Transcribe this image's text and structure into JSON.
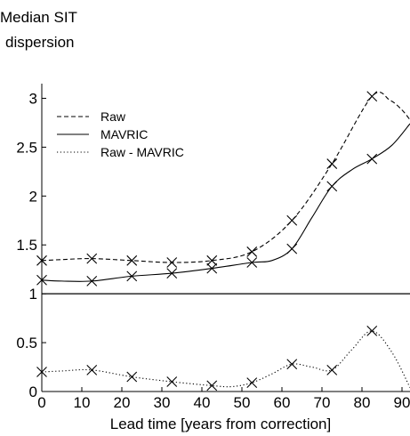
{
  "chart_data": {
    "type": "line",
    "title": "",
    "ylabel_lines": [
      "Median SIT",
      "dispersion"
    ],
    "xlabel": "Lead time [years from correction]",
    "xlim": [
      0,
      92
    ],
    "ylim": [
      0,
      3.15
    ],
    "x_ticks": [
      0,
      10,
      20,
      30,
      40,
      50,
      60,
      70,
      80,
      90
    ],
    "y_ticks": [
      0,
      0.5,
      1,
      1.5,
      2,
      2.5,
      3
    ],
    "y_tick_labels": [
      "0",
      "0.5",
      "1",
      "1.5",
      "2",
      "2.5",
      "3"
    ],
    "reference_line": 1,
    "grid": false,
    "legend_position": "top-left",
    "series": [
      {
        "name": "Raw",
        "style": "dashed",
        "curve_x": [
          0,
          5,
          12.5,
          22.5,
          32.5,
          42.5,
          52.5,
          62.5,
          72.5,
          82.5,
          87,
          90,
          92
        ],
        "curve_y": [
          1.34,
          1.35,
          1.36,
          1.34,
          1.32,
          1.34,
          1.43,
          1.75,
          2.33,
          3.02,
          2.98,
          2.88,
          2.78
        ],
        "marker_x": [
          0,
          12.5,
          22.5,
          32.5,
          42.5,
          52.5,
          62.5,
          72.5,
          82.5
        ],
        "marker_y": [
          1.34,
          1.36,
          1.34,
          1.32,
          1.34,
          1.43,
          1.75,
          2.33,
          3.02
        ]
      },
      {
        "name": "MAVRIC",
        "style": "solid",
        "curve_x": [
          0,
          5,
          12.5,
          22.5,
          32.5,
          42.5,
          52.5,
          57.5,
          62.5,
          67.5,
          72.5,
          77.5,
          82.5,
          87.5,
          92
        ],
        "curve_y": [
          1.14,
          1.13,
          1.13,
          1.18,
          1.21,
          1.26,
          1.32,
          1.34,
          1.46,
          1.78,
          2.1,
          2.27,
          2.38,
          2.52,
          2.74
        ],
        "marker_x": [
          0,
          12.5,
          22.5,
          32.5,
          42.5,
          52.5,
          62.5,
          72.5,
          82.5
        ],
        "marker_y": [
          1.14,
          1.13,
          1.18,
          1.21,
          1.26,
          1.32,
          1.46,
          2.1,
          2.38
        ]
      },
      {
        "name": "Raw - MAVRIC",
        "style": "dotted",
        "curve_x": [
          0,
          5,
          12.5,
          22.5,
          32.5,
          42.5,
          47.5,
          52.5,
          57.5,
          62.5,
          67.5,
          72.5,
          77.5,
          82.5,
          87.5,
          92
        ],
        "curve_y": [
          0.2,
          0.21,
          0.22,
          0.15,
          0.1,
          0.06,
          0.05,
          0.09,
          0.18,
          0.28,
          0.25,
          0.22,
          0.43,
          0.62,
          0.4,
          0.04
        ],
        "marker_x": [
          0,
          12.5,
          22.5,
          32.5,
          42.5,
          52.5,
          62.5,
          72.5,
          82.5
        ],
        "marker_y": [
          0.2,
          0.22,
          0.15,
          0.1,
          0.06,
          0.09,
          0.28,
          0.22,
          0.62
        ]
      }
    ]
  }
}
